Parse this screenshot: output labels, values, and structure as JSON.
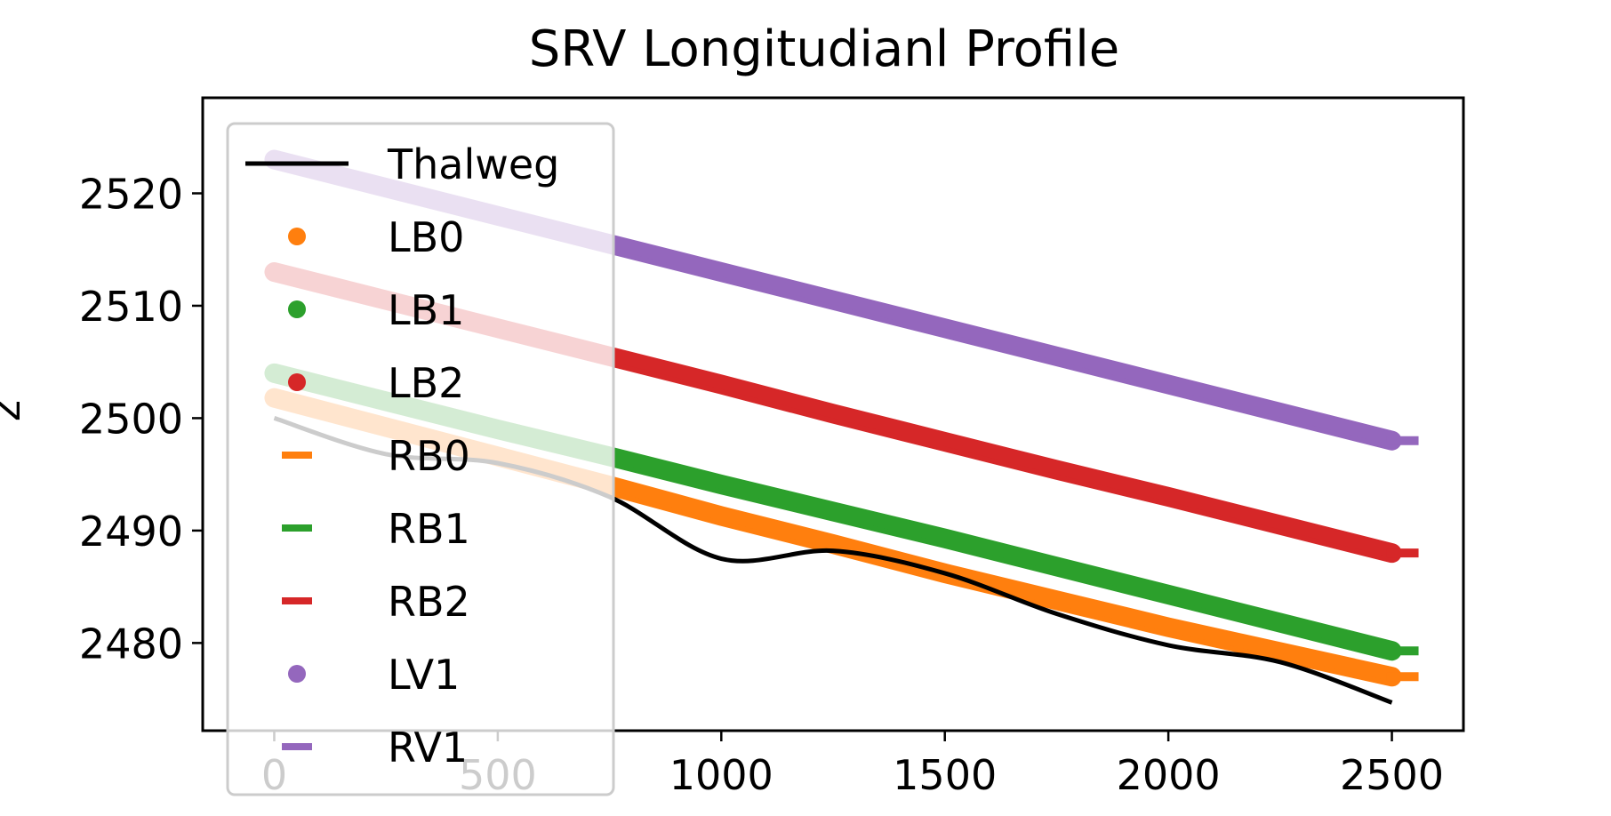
{
  "chart_data": {
    "type": "line",
    "title": "SRV Longitudianl Profile",
    "ylabel": "z",
    "xlabel": "",
    "xlim": [
      -160,
      2660
    ],
    "ylim": [
      2472.2,
      2528.5
    ],
    "x_ticks": [
      0,
      500,
      1000,
      1500,
      2000,
      2500
    ],
    "y_ticks": [
      2480,
      2490,
      2500,
      2510,
      2520
    ],
    "grid": false,
    "legend_position": "upper-left",
    "x": [
      0,
      250,
      500,
      750,
      1000,
      1250,
      1500,
      1750,
      2000,
      2250,
      2500
    ],
    "series": [
      {
        "name": "Thalweg",
        "marker": "line",
        "color": "#000000",
        "values": [
          2500,
          2496.8,
          2496.0,
          2493.0,
          2487.5,
          2488.2,
          2486.2,
          2482.6,
          2479.8,
          2478.3,
          2474.7
        ]
      },
      {
        "name": "LB0",
        "marker": "dot",
        "color": "#ff7f0e",
        "values": [
          2501.8,
          2499.2,
          2496.6,
          2494.0,
          2491.3,
          2488.8,
          2486.2,
          2483.8,
          2481.4,
          2479.2,
          2477.0
        ]
      },
      {
        "name": "LB1",
        "marker": "dot",
        "color": "#2ca02c",
        "values": [
          2504.0,
          2501.5,
          2499.0,
          2496.6,
          2494.1,
          2491.7,
          2489.3,
          2486.8,
          2484.3,
          2481.8,
          2479.3
        ]
      },
      {
        "name": "LB2",
        "marker": "dot",
        "color": "#d62728",
        "values": [
          2513.0,
          2510.5,
          2508.0,
          2505.5,
          2503.0,
          2500.4,
          2497.9,
          2495.4,
          2493.0,
          2490.5,
          2488.0
        ]
      },
      {
        "name": "RB0",
        "marker": "dash",
        "color": "#ff7f0e",
        "values": [
          2501.8,
          2499.2,
          2496.6,
          2494.0,
          2491.3,
          2488.8,
          2486.2,
          2483.8,
          2481.4,
          2479.2,
          2477.0
        ]
      },
      {
        "name": "RB1",
        "marker": "dash",
        "color": "#2ca02c",
        "values": [
          2504.0,
          2501.5,
          2499.0,
          2496.6,
          2494.1,
          2491.7,
          2489.3,
          2486.8,
          2484.3,
          2481.8,
          2479.3
        ]
      },
      {
        "name": "RB2",
        "marker": "dash",
        "color": "#d62728",
        "values": [
          2513.0,
          2510.5,
          2508.0,
          2505.5,
          2503.0,
          2500.4,
          2497.9,
          2495.4,
          2493.0,
          2490.5,
          2488.0
        ]
      },
      {
        "name": "LV1",
        "marker": "dot",
        "color": "#9467bd",
        "values": [
          2523.0,
          2520.5,
          2518.0,
          2515.5,
          2513.0,
          2510.5,
          2508.0,
          2505.5,
          2503.0,
          2500.5,
          2498.0
        ]
      },
      {
        "name": "RV1",
        "marker": "dash",
        "color": "#9467bd",
        "values": [
          2523.0,
          2520.5,
          2518.0,
          2515.5,
          2513.0,
          2510.5,
          2508.0,
          2505.5,
          2503.0,
          2500.5,
          2498.0
        ]
      }
    ]
  }
}
